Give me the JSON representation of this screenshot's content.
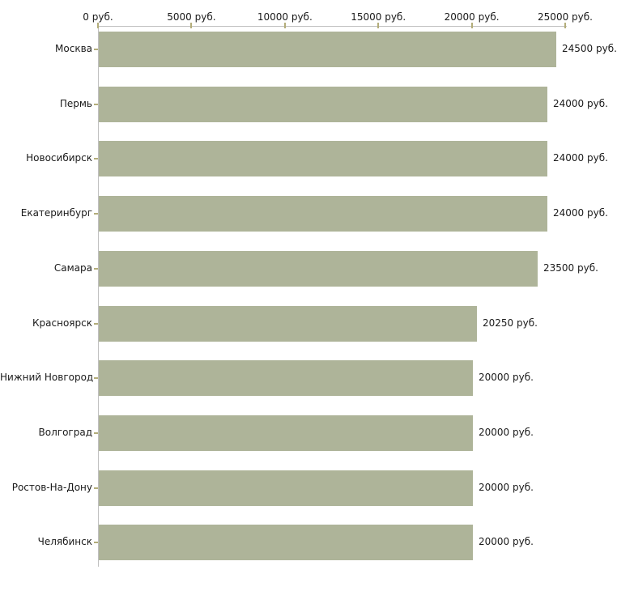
{
  "chart_data": {
    "type": "bar",
    "orientation": "horizontal",
    "title": "",
    "xlabel": "",
    "ylabel": "",
    "xlim": [
      0,
      25000
    ],
    "grid": false,
    "legend": false,
    "categories": [
      "Москва",
      "Пермь",
      "Новосибирск",
      "Екатеринбург",
      "Самара",
      "Красноярск",
      "Нижний Новгород",
      "Волгоград",
      "Ростов-На-Дону",
      "Челябинск"
    ],
    "values": [
      24500,
      24000,
      24000,
      24000,
      23500,
      20250,
      20000,
      20000,
      20000,
      20000
    ],
    "value_labels": [
      "24500 руб.",
      "24000 руб.",
      "24000 руб.",
      "24000 руб.",
      "23500 руб.",
      "20250 руб.",
      "20000 руб.",
      "20000 руб.",
      "20000 руб.",
      "20000 руб."
    ],
    "x_ticks": [
      0,
      5000,
      10000,
      15000,
      20000,
      25000
    ],
    "x_tick_labels": [
      "0 руб.",
      "5000 руб.",
      "10000 руб.",
      "15000 руб.",
      "20000 руб.",
      "25000 руб."
    ],
    "colors": {
      "bar": "#aeb499",
      "axis": "#c0c0c0",
      "tick": "#b3ad7a",
      "text": "#1a1a1a",
      "background": "#ffffff"
    }
  }
}
